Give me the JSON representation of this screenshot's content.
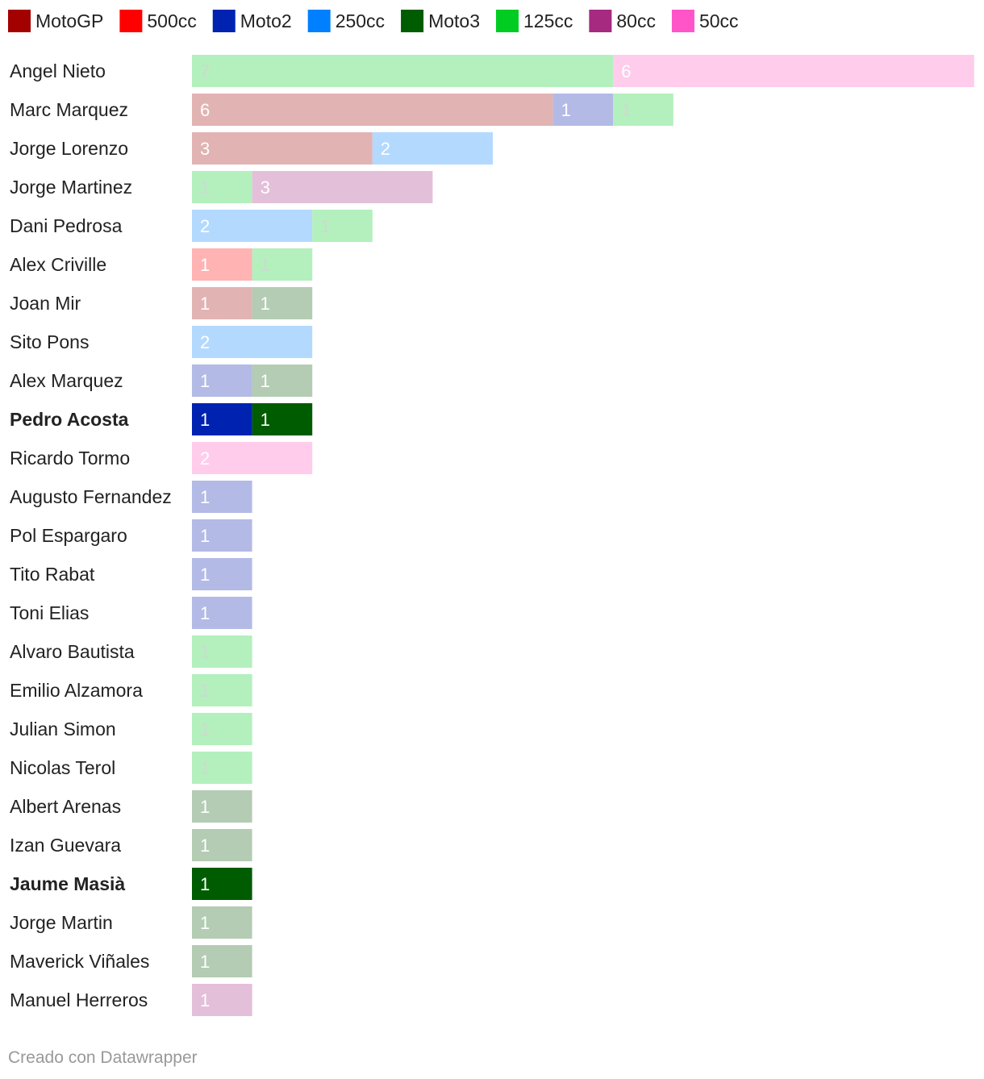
{
  "chart_data": {
    "type": "bar",
    "orientation": "horizontal",
    "stacked": true,
    "title": "",
    "xlabel": "",
    "ylabel": "",
    "legend": {
      "placement": "top",
      "entries": [
        {
          "key": "motogp",
          "label": "MotoGP",
          "color": "#a30000"
        },
        {
          "key": "c500",
          "label": "500cc",
          "color": "#ff0000"
        },
        {
          "key": "moto2",
          "label": "Moto2",
          "color": "#0022b0"
        },
        {
          "key": "c250",
          "label": "250cc",
          "color": "#0080ff"
        },
        {
          "key": "moto3",
          "label": "Moto3",
          "color": "#005c00"
        },
        {
          "key": "c125",
          "label": "125cc",
          "color": "#00cc22"
        },
        {
          "key": "c80",
          "label": "80cc",
          "color": "#a52a80"
        },
        {
          "key": "c50",
          "label": "50cc",
          "color": "#ff55c8"
        }
      ]
    },
    "bar_colors": {
      "motogp": "#e2b3b3",
      "c500": "#ffb3b3",
      "moto2": "#b3bae6",
      "c250": "#b3d9ff",
      "moto3": "#b3ccb3",
      "c125": "#b3f0bd",
      "c80": "#e4bfd9",
      "c50": "#ffcceb"
    },
    "highlight_colors": {
      "moto2": "#0022b0",
      "moto3": "#005c00"
    },
    "rows": [
      {
        "name": "Angel Nieto",
        "bold": false,
        "segments": [
          {
            "cat": "c125",
            "value": 7
          },
          {
            "cat": "c50",
            "value": 6
          }
        ]
      },
      {
        "name": "Marc Marquez",
        "bold": false,
        "segments": [
          {
            "cat": "motogp",
            "value": 6
          },
          {
            "cat": "moto2",
            "value": 1
          },
          {
            "cat": "c125",
            "value": 1
          }
        ]
      },
      {
        "name": "Jorge Lorenzo",
        "bold": false,
        "segments": [
          {
            "cat": "motogp",
            "value": 3
          },
          {
            "cat": "c250",
            "value": 2
          }
        ]
      },
      {
        "name": "Jorge Martinez",
        "bold": false,
        "segments": [
          {
            "cat": "c125",
            "value": 1
          },
          {
            "cat": "c80",
            "value": 3
          }
        ]
      },
      {
        "name": "Dani Pedrosa",
        "bold": false,
        "segments": [
          {
            "cat": "c250",
            "value": 2
          },
          {
            "cat": "c125",
            "value": 1
          }
        ]
      },
      {
        "name": "Alex Criville",
        "bold": false,
        "segments": [
          {
            "cat": "c500",
            "value": 1
          },
          {
            "cat": "c125",
            "value": 1
          }
        ]
      },
      {
        "name": "Joan Mir",
        "bold": false,
        "segments": [
          {
            "cat": "motogp",
            "value": 1
          },
          {
            "cat": "moto3",
            "value": 1
          }
        ]
      },
      {
        "name": "Sito Pons",
        "bold": false,
        "segments": [
          {
            "cat": "c250",
            "value": 2
          }
        ]
      },
      {
        "name": "Alex Marquez",
        "bold": false,
        "segments": [
          {
            "cat": "moto2",
            "value": 1
          },
          {
            "cat": "moto3",
            "value": 1
          }
        ]
      },
      {
        "name": "Pedro Acosta",
        "bold": true,
        "segments": [
          {
            "cat": "moto2",
            "value": 1
          },
          {
            "cat": "moto3",
            "value": 1
          }
        ]
      },
      {
        "name": "Ricardo Tormo",
        "bold": false,
        "segments": [
          {
            "cat": "c50",
            "value": 2
          }
        ]
      },
      {
        "name": "Augusto Fernandez",
        "bold": false,
        "segments": [
          {
            "cat": "moto2",
            "value": 1
          }
        ]
      },
      {
        "name": "Pol Espargaro",
        "bold": false,
        "segments": [
          {
            "cat": "moto2",
            "value": 1
          }
        ]
      },
      {
        "name": "Tito Rabat",
        "bold": false,
        "segments": [
          {
            "cat": "moto2",
            "value": 1
          }
        ]
      },
      {
        "name": "Toni Elias",
        "bold": false,
        "segments": [
          {
            "cat": "moto2",
            "value": 1
          }
        ]
      },
      {
        "name": "Alvaro Bautista",
        "bold": false,
        "segments": [
          {
            "cat": "c125",
            "value": 1
          }
        ]
      },
      {
        "name": "Emilio Alzamora",
        "bold": false,
        "segments": [
          {
            "cat": "c125",
            "value": 1
          }
        ]
      },
      {
        "name": "Julian Simon",
        "bold": false,
        "segments": [
          {
            "cat": "c125",
            "value": 1
          }
        ]
      },
      {
        "name": "Nicolas Terol",
        "bold": false,
        "segments": [
          {
            "cat": "c125",
            "value": 1
          }
        ]
      },
      {
        "name": "Albert Arenas",
        "bold": false,
        "segments": [
          {
            "cat": "moto3",
            "value": 1
          }
        ]
      },
      {
        "name": "Izan Guevara",
        "bold": false,
        "segments": [
          {
            "cat": "moto3",
            "value": 1
          }
        ]
      },
      {
        "name": "Jaume Masià",
        "bold": true,
        "segments": [
          {
            "cat": "moto3",
            "value": 1
          }
        ]
      },
      {
        "name": "Jorge Martin",
        "bold": false,
        "segments": [
          {
            "cat": "moto3",
            "value": 1
          }
        ]
      },
      {
        "name": "Maverick Viñales",
        "bold": false,
        "segments": [
          {
            "cat": "moto3",
            "value": 1
          }
        ]
      },
      {
        "name": "Manuel Herreros",
        "bold": false,
        "segments": [
          {
            "cat": "c80",
            "value": 1
          }
        ]
      }
    ],
    "xlim": [
      0,
      13
    ],
    "grid": false
  },
  "footer": {
    "credit": "Creado con Datawrapper"
  }
}
